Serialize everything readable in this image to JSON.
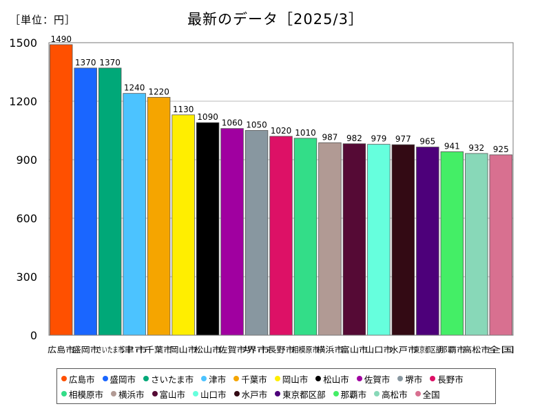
{
  "unit_label": "［単位：円］",
  "chart_data": {
    "type": "bar",
    "title": "最新のデータ［2025/3］",
    "xlabel": "",
    "ylabel": "",
    "ylim": [
      0,
      1500
    ],
    "yticks": [
      0,
      300,
      600,
      900,
      1200,
      1500
    ],
    "grid": true,
    "legend_position": "bottom",
    "categories": [
      "広島市",
      "盛岡市",
      "さいたま市",
      "津市",
      "千葉市",
      "岡山市",
      "松山市",
      "佐賀市",
      "堺市",
      "長野市",
      "相模原市",
      "横浜市",
      "富山市",
      "山口市",
      "水戸市",
      "東京都区部",
      "那覇市",
      "高松市",
      "全国"
    ],
    "values": [
      1490,
      1370,
      1370,
      1240,
      1220,
      1130,
      1090,
      1060,
      1050,
      1020,
      1010,
      987,
      982,
      979,
      977,
      965,
      941,
      932,
      925
    ],
    "colors": [
      "#ff5000",
      "#1a66ff",
      "#00a878",
      "#4cc3ff",
      "#f5a500",
      "#ffee00",
      "#000000",
      "#a000a0",
      "#8897a0",
      "#dd1166",
      "#33dd88",
      "#b19a94",
      "#550a35",
      "#66ffdd",
      "#330a14",
      "#4d007a",
      "#44ee66",
      "#88d8b8",
      "#d87090"
    ]
  }
}
